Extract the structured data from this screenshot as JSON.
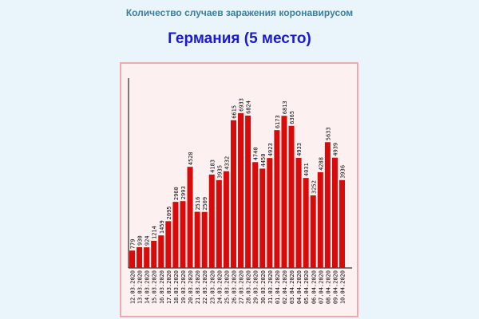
{
  "header": {
    "subtitle": "Количество случаев заражения коронавирусом",
    "title": "Германия (5 место)"
  },
  "colors": {
    "background": "#e9f4fb",
    "bar": "#d80a0a",
    "frame_border": "#f0a8ac",
    "frame_fill": "#fdf0f0",
    "title": "#1a1ad6",
    "subtitle": "#3b7f9f"
  },
  "chart_data": {
    "type": "bar",
    "title": "Германия (5 место)",
    "xlabel": "",
    "ylabel": "",
    "categories": [
      "12.03.2020",
      "13.03.2020",
      "14.03.2020",
      "15.03.2020",
      "16.03.2020",
      "17.03.2020",
      "18.03.2020",
      "19.03.2020",
      "20.03.2020",
      "21.03.2020",
      "22.03.2020",
      "23.03.2020",
      "24.03.2020",
      "25.03.2020",
      "26.03.2020",
      "27.03.2020",
      "28.03.2020",
      "29.03.2020",
      "30.03.2020",
      "31.03.2020",
      "01.04.2020",
      "02.04.2020",
      "03.04.2020",
      "04.04.2020",
      "05.04.2020",
      "06.04.2020",
      "07.04.2020",
      "08.04.2020",
      "09.04.2020",
      "10.04.2020"
    ],
    "values": [
      779,
      930,
      924,
      1214,
      1459,
      2095,
      2960,
      2993,
      4528,
      2516,
      2509,
      4183,
      3935,
      4332,
      6615,
      6933,
      6824,
      4740,
      4450,
      4923,
      6173,
      6813,
      6365,
      4933,
      4031,
      3252,
      4288,
      5633,
      4939,
      3936
    ],
    "ylim": [
      0,
      8500
    ],
    "grid": false,
    "legend": "none"
  }
}
